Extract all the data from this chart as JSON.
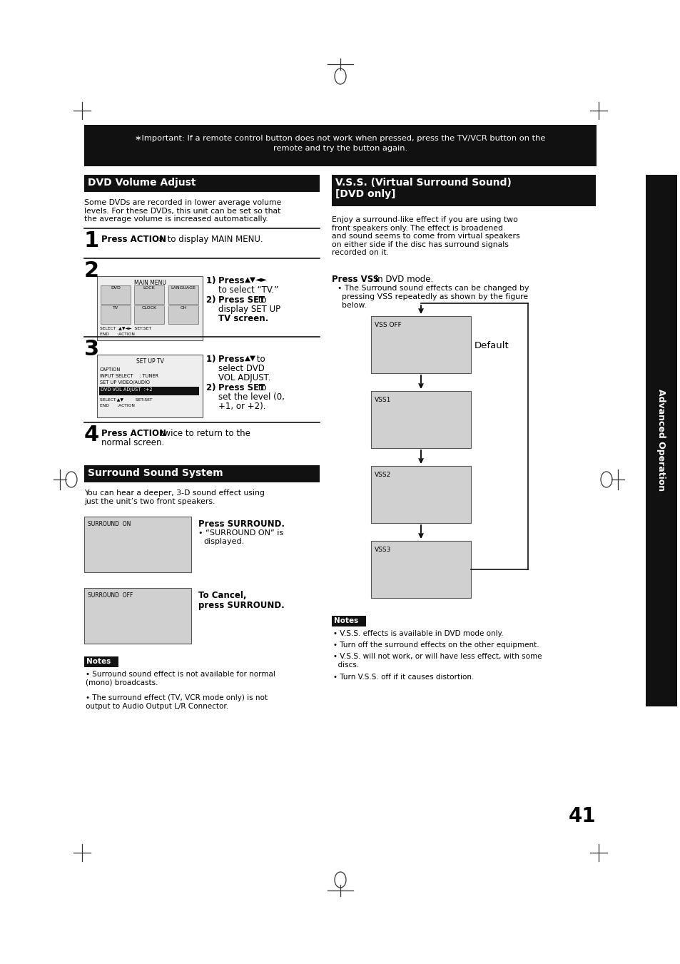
{
  "bg_color": "#ffffff",
  "dark_bg": "#111111",
  "gray_box": "#d0d0d0",
  "light_box": "#e8e8e8",
  "page_number": "41",
  "header_line1": "∗Important: If a remote control button does not work when pressed, press the TV/VCR button on the",
  "header_line2": "remote and try the button again.",
  "left_title": "DVD Volume Adjust",
  "right_title1": "V.S.S. (Virtual Surround Sound)",
  "right_title2": "[DVD only]",
  "left_body": "Some DVDs are recorded in lower average volume\nlevels. For these DVDs, this unit can be set so that\nthe average volume is increased automatically.",
  "right_body": "Enjoy a surround-like effect if you are using two\nfront speakers only. The effect is broadened\nand sound seems to come from virtual speakers\non either side if the disc has surround signals\nrecorded on it.",
  "vss_boxes": [
    "VSS OFF",
    "VSS1",
    "VSS2",
    "VSS3"
  ],
  "vss_default": "Default",
  "surround_title": "Surround Sound System",
  "surround_body": "You can hear a deeper, 3-D sound effect using\njust the unit’s two front speakers.",
  "left_notes": [
    "Surround sound effect is not available for normal\n(mono) broadcasts.",
    "The surround effect (TV, VCR mode only) is not\noutput to Audio Output L/R Connector."
  ],
  "right_notes": [
    "V.S.S. effects is available in DVD mode only.",
    "Turn off the surround effects on the other equipment.",
    "V.S.S. will not work, or will have less effect, with some\n  discs.",
    "Turn V.S.S. off if it causes distortion."
  ],
  "sidebar_text": "Advanced Operation"
}
